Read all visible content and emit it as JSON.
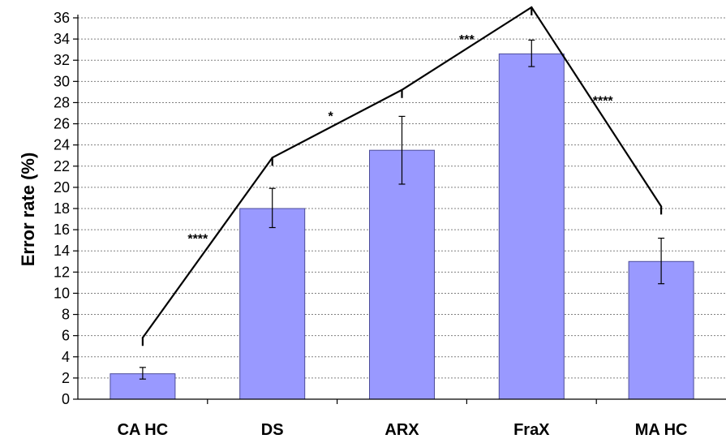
{
  "chart_data": {
    "type": "bar",
    "title": "",
    "xlabel": "",
    "ylabel": "Error rate  (%)",
    "ylim": [
      0,
      36
    ],
    "yticks": [
      0,
      2,
      4,
      6,
      8,
      10,
      12,
      14,
      16,
      18,
      20,
      22,
      24,
      26,
      28,
      30,
      32,
      34,
      36
    ],
    "grid": "horizontal dashed",
    "categories": [
      "CA HC",
      "DS",
      "ARX",
      "FraX",
      "MA HC"
    ],
    "series": [
      {
        "values": [
          2.4,
          18.0,
          23.5,
          32.6,
          13.0
        ],
        "error_low": [
          1.9,
          16.2,
          20.3,
          31.4,
          10.9
        ],
        "error_high": [
          3.0,
          19.9,
          26.7,
          33.9,
          15.2
        ]
      }
    ],
    "colors": {
      "bar_fill": "#9999ff",
      "bar_stroke": "#4d4d99",
      "grid": "#808080",
      "axis": "#000000"
    },
    "significance": [
      {
        "from": 0,
        "to": 1,
        "label": "****"
      },
      {
        "from": 1,
        "to": 2,
        "label": "*"
      },
      {
        "from": 2,
        "to": 3,
        "label": "***"
      },
      {
        "from": 3,
        "to": 4,
        "label": "****"
      }
    ],
    "significance_points": [
      5.8,
      22.8,
      29.2,
      37.0,
      18.2
    ]
  }
}
